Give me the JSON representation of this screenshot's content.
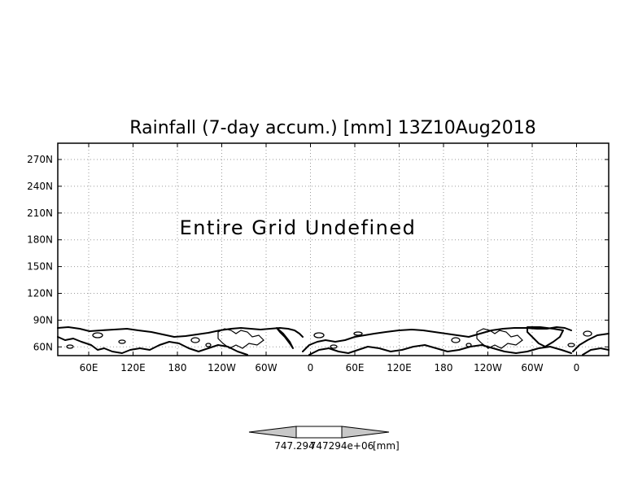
{
  "map": {
    "title": "Rainfall (7-day accum.) [mm] 13Z10Aug2018",
    "message": "Entire Grid Undefined",
    "x_tick_labels": [
      "60E",
      "120E",
      "180",
      "120W",
      "60W",
      "0",
      "60E",
      "120E",
      "180",
      "120W",
      "60W",
      "0"
    ],
    "y_tick_labels": [
      "270N",
      "240N",
      "210N",
      "180N",
      "150N",
      "120N",
      "90N",
      "60N"
    ],
    "grid": true
  },
  "colorbar": {
    "label_low": "747.294",
    "label_high": "747294e+06",
    "unit": "[mm]",
    "arrow_color": "#c8c8c8",
    "center_color": "#ffffff"
  }
}
